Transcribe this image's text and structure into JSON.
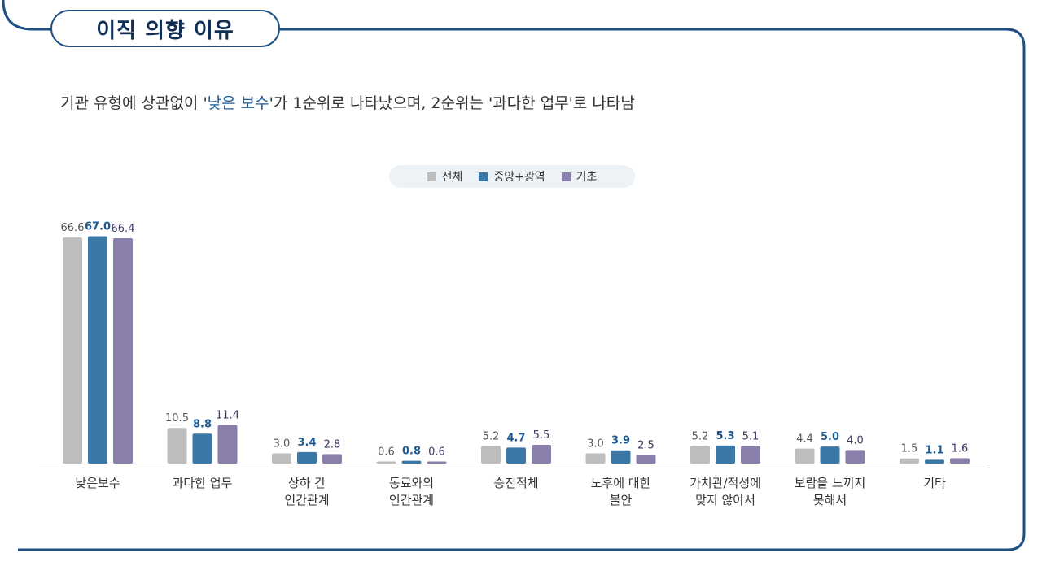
{
  "title": "이직 의향 이유",
  "subtitle": {
    "pre": "기관 유형에 상관없이 '",
    "hl": "낮은 보수",
    "post": "'가 1순위로 나타났으며, 2순위는 '과다한 업무'로 나타남"
  },
  "colors": {
    "frame": "#1d4f82",
    "series": [
      "#bdbdbd",
      "#3b78a6",
      "#8a7fab"
    ],
    "value_labels": [
      "#555555",
      "#1f5a92",
      "#3f3a66"
    ]
  },
  "chart_data": {
    "type": "bar",
    "legend_position": "top-center",
    "ylim": [
      0,
      70
    ],
    "categories": [
      [
        "낮은보수"
      ],
      [
        "과다한 업무"
      ],
      [
        "상하 간",
        "인간관계"
      ],
      [
        "동료와의",
        "인간관계"
      ],
      [
        "승진적체"
      ],
      [
        "노후에 대한",
        "불안"
      ],
      [
        "가치관/적성에",
        "맞지 않아서"
      ],
      [
        "보람을 느끼지",
        "못해서"
      ],
      [
        "기타"
      ]
    ],
    "series": [
      {
        "name": "전체",
        "values": [
          66.6,
          10.5,
          3.0,
          0.6,
          5.2,
          3.0,
          5.2,
          4.4,
          1.5
        ]
      },
      {
        "name": "중앙+광역",
        "values": [
          67.0,
          8.8,
          3.4,
          0.8,
          4.7,
          3.9,
          5.3,
          5.0,
          1.1
        ]
      },
      {
        "name": "기초",
        "values": [
          66.4,
          11.4,
          2.8,
          0.6,
          5.5,
          2.5,
          5.1,
          4.0,
          1.6
        ]
      }
    ]
  }
}
